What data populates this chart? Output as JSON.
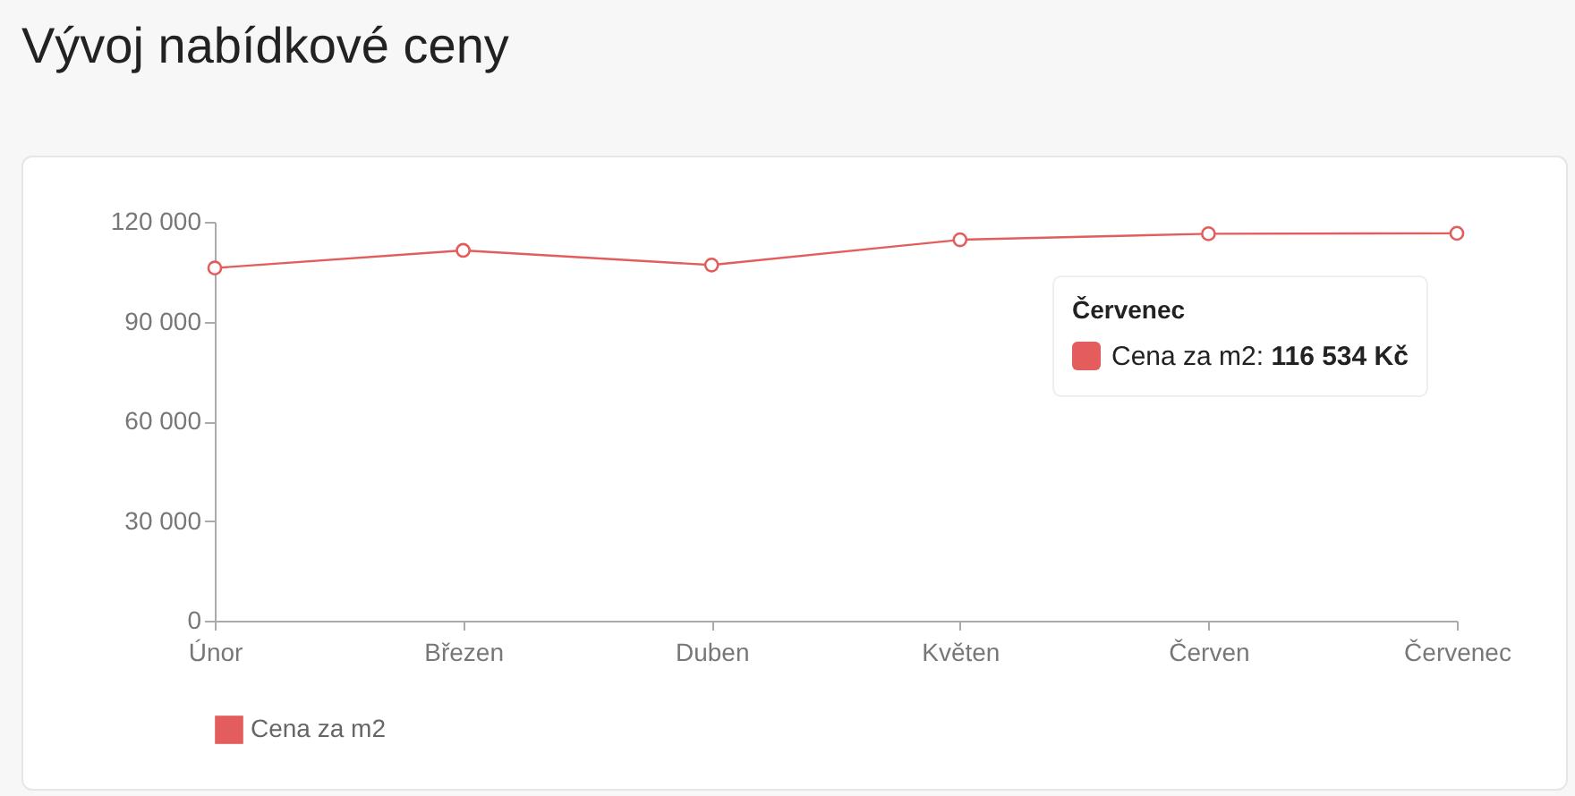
{
  "chart_data": {
    "type": "line",
    "title": "Vývoj nabídkové ceny",
    "categories": [
      "Únor",
      "Březen",
      "Duben",
      "Květen",
      "Červen",
      "Červenec"
    ],
    "series": [
      {
        "name": "Cena za m2",
        "color": "#e35d5d",
        "values": [
          106100,
          111400,
          107000,
          114600,
          116400,
          116534
        ]
      }
    ],
    "ylim": [
      0,
      120000
    ],
    "yticks": [
      {
        "value": 0,
        "label": "0"
      },
      {
        "value": 30000,
        "label": "30 000"
      },
      {
        "value": 60000,
        "label": "60 000"
      },
      {
        "value": 90000,
        "label": "90 000"
      },
      {
        "value": 120000,
        "label": "120 000"
      }
    ],
    "grid": false,
    "legend": "bottom left",
    "marker": "circle",
    "line_style": "solid",
    "annotations": [
      "Červenec",
      "Cena za m2: 116 534 Kč"
    ]
  }
}
